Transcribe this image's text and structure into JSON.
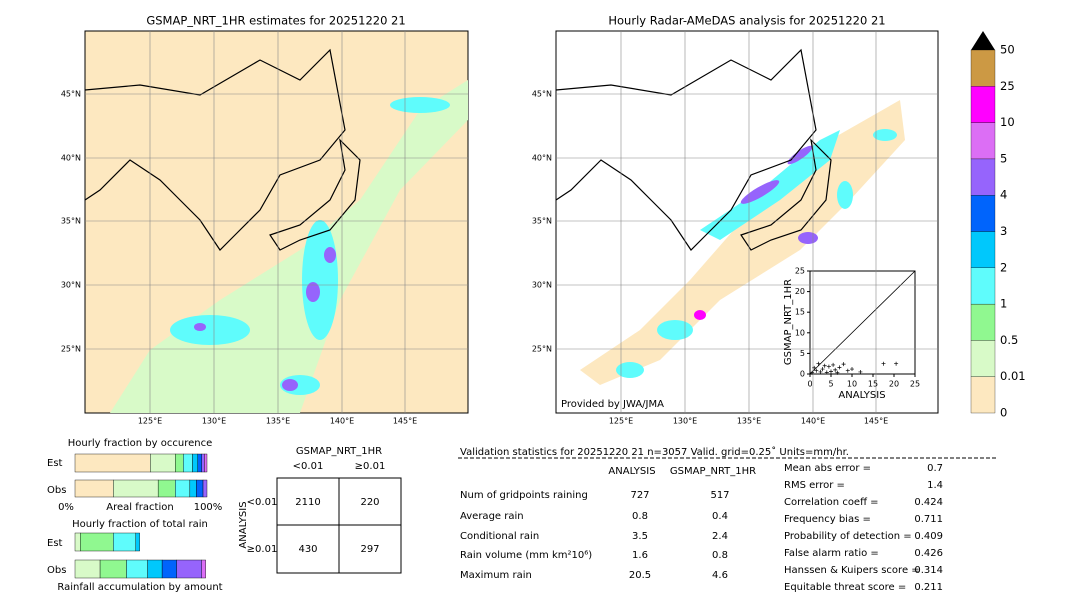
{
  "maps": [
    {
      "title": "GSMAP_NRT_1HR estimates for 20251220 21"
    },
    {
      "title": "Hourly Radar-AMeDAS analysis for 20251220 21",
      "credit": "Provided by JWA/JMA"
    }
  ],
  "lat_labels": [
    "45°N",
    "40°N",
    "35°N",
    "30°N",
    "25°N"
  ],
  "lon_labels": [
    "125°E",
    "130°E",
    "135°E",
    "140°E",
    "145°E"
  ],
  "colorbar": {
    "labels": [
      "0",
      "0.01",
      "0.5",
      "1",
      "2",
      "3",
      "4",
      "5",
      "10",
      "25",
      "50"
    ],
    "colors": [
      "#fde8c0",
      "#d8fac8",
      "#90f890",
      "#5ffcfc",
      "#00c8fc",
      "#0064fc",
      "#9664fc",
      "#dc6ef5",
      "#ff00ff",
      "#cc9944"
    ]
  },
  "scatter": {
    "xlabel": "ANALYSIS",
    "ylabel": "GSMAP_NRT_1HR",
    "ticks": [
      0,
      5,
      10,
      15,
      20,
      25
    ],
    "points": [
      [
        0.5,
        0.3
      ],
      [
        1,
        1.5
      ],
      [
        1.5,
        0.8
      ],
      [
        2,
        2.5
      ],
      [
        2.5,
        0.5
      ],
      [
        3,
        1.2
      ],
      [
        3.5,
        2
      ],
      [
        4,
        0.4
      ],
      [
        4.5,
        1.8
      ],
      [
        5,
        0.6
      ],
      [
        5.5,
        2.2
      ],
      [
        6,
        1
      ],
      [
        6.5,
        0.3
      ],
      [
        7,
        1.6
      ],
      [
        8,
        2.4
      ],
      [
        9,
        0.8
      ],
      [
        10,
        1.2
      ],
      [
        12,
        0.5
      ],
      [
        17.5,
        2.5
      ],
      [
        20.5,
        2.5
      ]
    ]
  },
  "occurrence": {
    "title": "Hourly fraction by occurence",
    "rows": [
      "Est",
      "Obs"
    ],
    "est": [
      57,
      19,
      6,
      7,
      4,
      3,
      2,
      2
    ],
    "obs": [
      29,
      34,
      13,
      11,
      5,
      5,
      3
    ],
    "axis": [
      "0%",
      "Areal fraction",
      "100%"
    ]
  },
  "total": {
    "title": "Hourly fraction of total rain",
    "rows": [
      "Est",
      "Obs"
    ],
    "est": [
      4,
      25,
      17,
      3
    ],
    "obs": [
      19,
      20,
      16,
      11,
      11,
      19,
      3
    ],
    "xlabel": "Rainfall accumulation by amount"
  },
  "contingency": {
    "title": "GSMAP_NRT_1HR",
    "cols": [
      "<0.01",
      "≥0.01"
    ],
    "row_title": "ANALYSIS",
    "rows": [
      "<0.01",
      "≥0.01"
    ],
    "cells": [
      [
        2110,
        220
      ],
      [
        430,
        297
      ]
    ]
  },
  "validation": {
    "header": "Validation statistics for 20251220 21  n=3057 Valid. grid=0.25˚ Units=mm/hr.",
    "columns": [
      "ANALYSIS",
      "GSMAP_NRT_1HR"
    ],
    "rows": [
      {
        "label": "Num of gridpoints raining",
        "values": [
          727,
          517
        ]
      },
      {
        "label": "Average rain",
        "values": [
          0.8,
          0.4
        ]
      },
      {
        "label": "Conditional rain",
        "values": [
          3.5,
          2.4
        ]
      },
      {
        "label": "Rain volume (mm km²10⁶)",
        "values": [
          1.6,
          0.8
        ]
      },
      {
        "label": "Maximum rain",
        "values": [
          20.5,
          4.6
        ]
      }
    ],
    "scores": [
      {
        "label": "Mean abs error =",
        "value": 0.7
      },
      {
        "label": "RMS error =",
        "value": 1.4
      },
      {
        "label": "Correlation coeff =",
        "value": 0.424
      },
      {
        "label": "Frequency bias =",
        "value": 0.711
      },
      {
        "label": "Probability of detection =",
        "value": 0.409
      },
      {
        "label": "False alarm ratio =",
        "value": 0.426
      },
      {
        "label": "Hanssen & Kuipers score =",
        "value": 0.314
      },
      {
        "label": "Equitable threat score =",
        "value": 0.211
      }
    ]
  }
}
